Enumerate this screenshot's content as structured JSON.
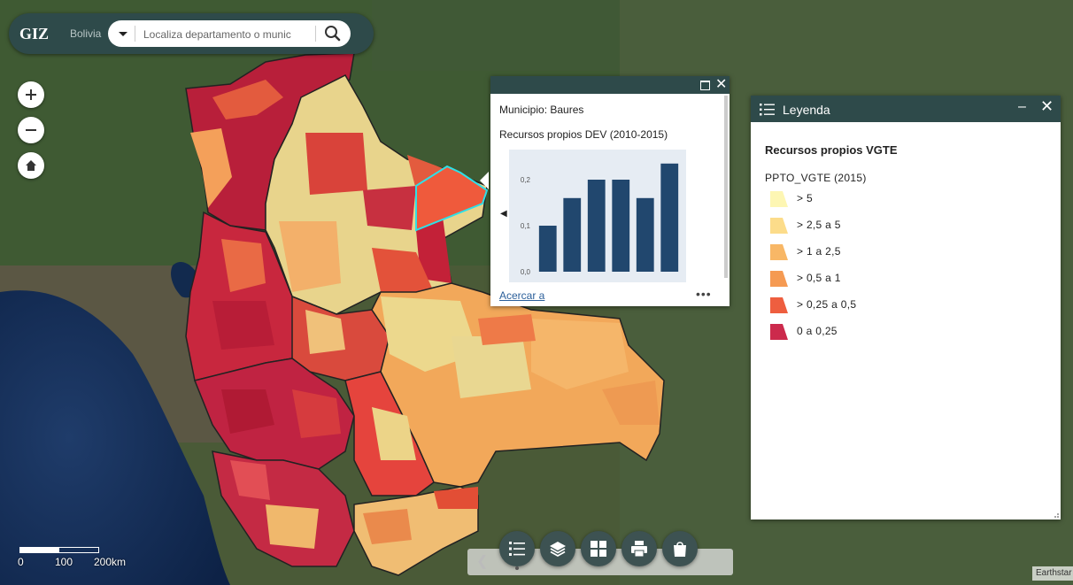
{
  "header": {
    "logo": "GIZ",
    "country": "Bolivia",
    "search_placeholder": "Localiza departamento o munic"
  },
  "scale": {
    "labels": [
      "0",
      "100",
      "200km"
    ]
  },
  "popup": {
    "title": "Municipio: Baures",
    "subtitle": "Recursos propios DEV (2010-2015)",
    "zoom_link": "Acercar a",
    "more": "•••"
  },
  "chart_data": {
    "type": "bar",
    "values": [
      0.1,
      0.16,
      0.2,
      0.2,
      0.16,
      0.235
    ],
    "yticks": [
      "0,0",
      "0,1",
      "0,2"
    ],
    "ylim": [
      0,
      0.25
    ],
    "color": "#21476e"
  },
  "legend": {
    "title": "Leyenda",
    "layer": "Recursos propios VGTE",
    "field": "PPTO_VGTE (2015)",
    "items": [
      {
        "label": "> 5",
        "color": "#fdf6b3"
      },
      {
        "label": "> 2,5 a 5",
        "color": "#fcdc8a"
      },
      {
        "label": "> 1 a 2,5",
        "color": "#f8b766"
      },
      {
        "label": "> 0,5 a 1",
        "color": "#f59a52"
      },
      {
        "label": "> 0,25 a 0,5",
        "color": "#ee5e3f"
      },
      {
        "label": "0 a 0,25",
        "color": "#cc2a4c"
      }
    ]
  },
  "attribution": "Earthstar"
}
